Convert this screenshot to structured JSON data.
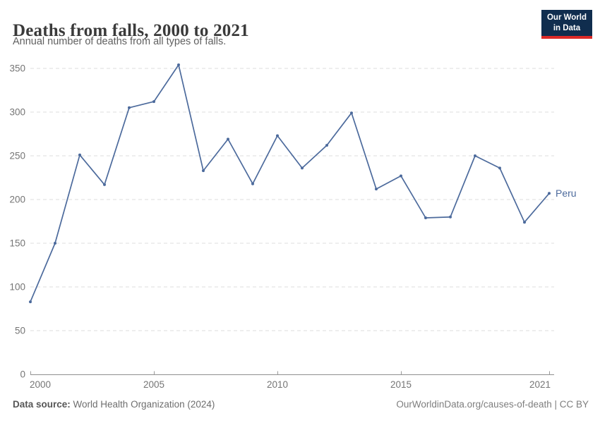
{
  "header": {
    "title": "Deaths from falls, 2000 to 2021",
    "subtitle": "Annual number of deaths from all types of falls."
  },
  "logo": {
    "line1": "Our World",
    "line2": "in Data",
    "bg_color": "#102d4e",
    "accent_color": "#dc2a27"
  },
  "chart_data": {
    "type": "line",
    "title": "Deaths from falls, 2000 to 2021",
    "x": [
      2000,
      2001,
      2002,
      2003,
      2004,
      2005,
      2006,
      2007,
      2008,
      2009,
      2010,
      2011,
      2012,
      2013,
      2014,
      2015,
      2016,
      2017,
      2018,
      2019,
      2020,
      2021
    ],
    "series": [
      {
        "name": "Peru",
        "color": "#4C6A9C",
        "values": [
          83,
          150,
          251,
          217,
          305,
          312,
          354,
          233,
          269,
          218,
          273,
          236,
          262,
          299,
          212,
          227,
          179,
          180,
          250,
          236,
          174,
          207
        ]
      }
    ],
    "xlabel": "",
    "ylabel": "",
    "ylim": [
      0,
      350
    ],
    "yticks": [
      0,
      50,
      100,
      150,
      200,
      250,
      300,
      350
    ],
    "xticks": [
      2000,
      2005,
      2010,
      2015,
      2021
    ],
    "grid": "horizontal-dashed",
    "legend_position": "end-of-line-label"
  },
  "footer": {
    "source_label": "Data source:",
    "source_text": " World Health Organization (2024)",
    "right_text": "OurWorldinData.org/causes-of-death | CC BY"
  }
}
